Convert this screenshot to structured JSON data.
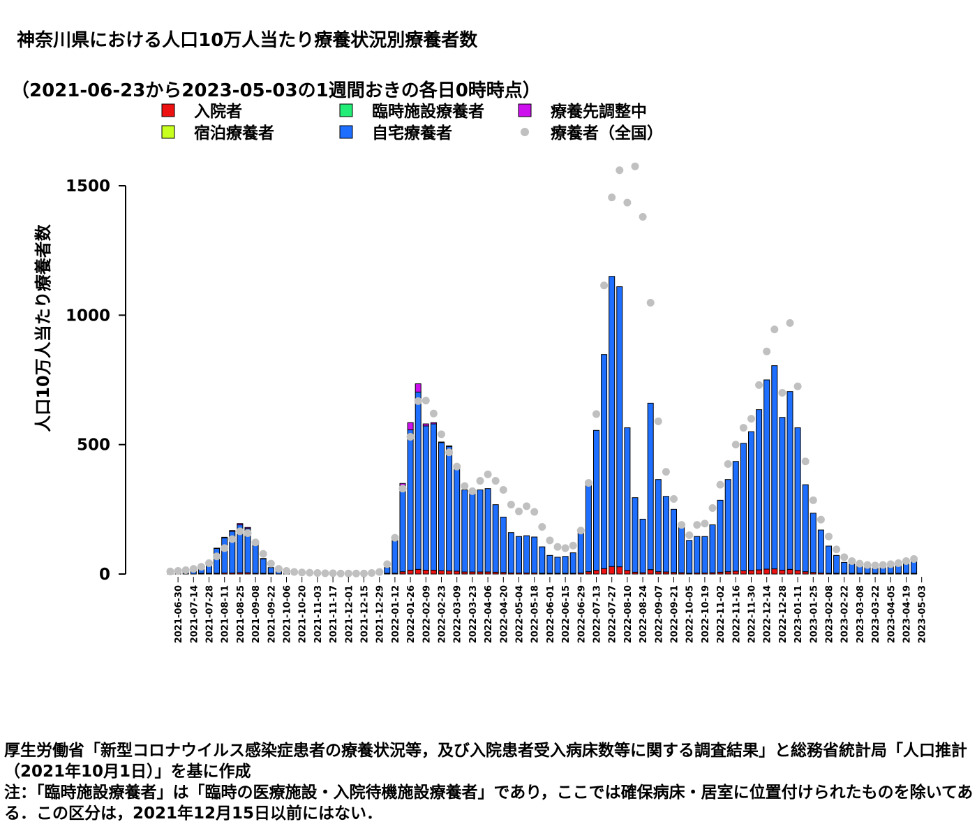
{
  "title": {
    "line1": "神奈川県における人口10万人当たり療養状況別療養者数",
    "line2": "（2021-06-23から2023-05-03の1週間おきの各日0時時点）"
  },
  "notes": {
    "line1": "厚生労働省「新型コロナウイルス感染症患者の療養状況等，及び入院患者受入病床数等に関する調査結果」と総務省統計局「人口推計（2021年10月1日）」を基に作成",
    "line2": "注：「臨時施設療養者」は「臨時の医療施設・入院待機施設療養者」であり，ここでは確保病床・居室に位置付けられたものを除いてある．この区分は，2021年12月15日以前にはない．"
  },
  "chart_data": {
    "type": "bar",
    "stacked": true,
    "ylabel": "人口10万人当たり療養者数",
    "ylim": [
      0,
      1600
    ],
    "yticks": [
      0,
      500,
      1000,
      1500
    ],
    "legend_position": "top",
    "x_tick_labels": [
      "2021-06-30",
      "2021-07-14",
      "2021-07-28",
      "2021-08-11",
      "2021-08-25",
      "2021-09-08",
      "2021-09-22",
      "2021-10-06",
      "2021-10-20",
      "2021-11-03",
      "2021-11-17",
      "2021-12-01",
      "2021-12-15",
      "2021-12-29",
      "2022-01-12",
      "2022-01-26",
      "2022-02-09",
      "2022-02-23",
      "2022-03-09",
      "2022-03-23",
      "2022-04-06",
      "2022-04-20",
      "2022-05-04",
      "2022-05-18",
      "2022-06-01",
      "2022-06-15",
      "2022-06-29",
      "2022-07-13",
      "2022-07-27",
      "2022-08-10",
      "2022-08-24",
      "2022-09-07",
      "2022-09-21",
      "2022-10-05",
      "2022-10-19",
      "2022-11-02",
      "2022-11-16",
      "2022-11-30",
      "2022-12-14",
      "2022-12-28",
      "2023-01-11",
      "2023-01-25",
      "2023-02-08",
      "2023-02-22",
      "2023-03-08",
      "2023-03-22",
      "2023-04-05",
      "2023-04-19",
      "2023-05-03"
    ],
    "colors": {
      "hospital": "#ee1111",
      "hotel": "#c8ff1e",
      "temp_facility": "#22ee77",
      "home": "#1e6fff",
      "adjusting": "#cc11ee",
      "national": "#c0c0c0"
    },
    "legend": [
      {
        "key": "hospital",
        "label": "入院者",
        "marker": "square"
      },
      {
        "key": "hotel",
        "label": "宿泊療養者",
        "marker": "square"
      },
      {
        "key": "temp_facility",
        "label": "臨時施設療養者",
        "marker": "square"
      },
      {
        "key": "home",
        "label": "自宅療養者",
        "marker": "square"
      },
      {
        "key": "adjusting",
        "label": "療養先調整中",
        "marker": "square"
      },
      {
        "key": "national",
        "label": "療養者（全国）",
        "marker": "dot"
      }
    ],
    "totals": [
      5,
      8,
      12,
      18,
      28,
      48,
      100,
      142,
      168,
      195,
      180,
      115,
      60,
      25,
      10,
      6,
      4,
      3,
      2,
      2,
      1,
      1,
      1,
      1,
      1,
      1,
      2,
      3,
      25,
      130,
      350,
      585,
      735,
      580,
      585,
      510,
      495,
      420,
      325,
      320,
      325,
      330,
      268,
      220,
      160,
      145,
      148,
      143,
      105,
      72,
      65,
      68,
      82,
      165,
      350,
      555,
      848,
      1150,
      1110,
      565,
      295,
      212,
      660,
      365,
      300,
      250,
      185,
      130,
      145,
      145,
      190,
      285,
      365,
      435,
      505,
      550,
      635,
      750,
      805,
      605,
      705,
      565,
      345,
      235,
      170,
      108,
      72,
      45,
      38,
      35,
      30,
      30,
      32,
      38,
      45,
      58,
      65
    ],
    "adjusting": [
      0,
      0,
      0,
      0,
      0,
      0,
      1,
      2,
      3,
      5,
      4,
      2,
      1,
      0,
      0,
      0,
      0,
      0,
      0,
      0,
      0,
      0,
      0,
      0,
      0,
      0,
      0,
      0,
      0,
      2,
      8,
      28,
      32,
      8,
      5,
      2,
      2,
      1,
      0,
      0,
      0,
      0,
      0,
      0,
      0,
      0,
      0,
      0,
      0,
      0,
      0,
      0,
      0,
      0,
      0,
      0,
      0,
      0,
      0,
      0,
      0,
      0,
      0,
      0,
      0,
      0,
      0,
      0,
      0,
      0,
      0,
      0,
      0,
      0,
      0,
      0,
      0,
      0,
      0,
      0,
      0,
      0,
      0,
      0,
      0,
      0,
      0,
      0,
      0,
      0,
      0,
      0,
      0,
      0,
      0,
      0,
      0
    ],
    "national": [
      10,
      12,
      15,
      20,
      28,
      42,
      68,
      100,
      135,
      165,
      158,
      122,
      78,
      40,
      20,
      12,
      8,
      6,
      5,
      4,
      3,
      3,
      2,
      2,
      2,
      2,
      4,
      8,
      38,
      140,
      330,
      530,
      668,
      670,
      620,
      540,
      470,
      415,
      340,
      320,
      360,
      385,
      360,
      325,
      268,
      242,
      262,
      240,
      182,
      130,
      105,
      100,
      110,
      168,
      352,
      618,
      1115,
      1455,
      1560,
      1435,
      1575,
      1380,
      1048,
      590,
      395,
      290,
      190,
      150,
      190,
      195,
      255,
      345,
      425,
      500,
      565,
      600,
      730,
      860,
      945,
      700,
      970,
      725,
      435,
      285,
      210,
      145,
      95,
      65,
      50,
      40,
      35,
      33,
      35,
      38,
      42,
      50,
      58
    ]
  }
}
